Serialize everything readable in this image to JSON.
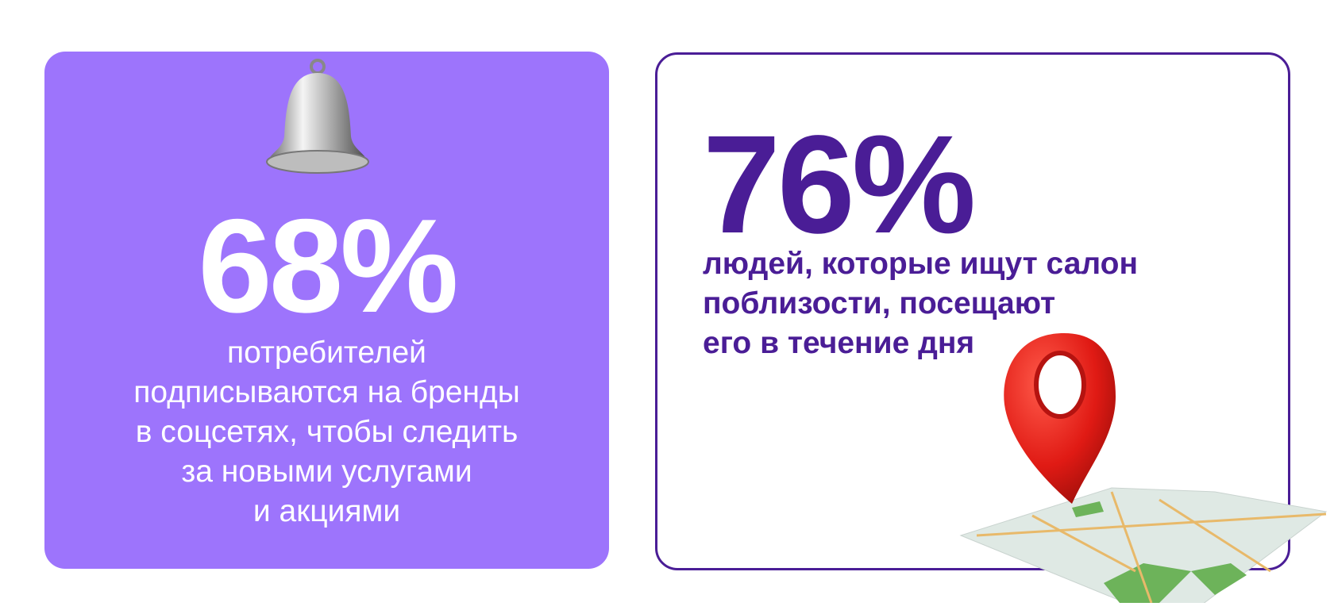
{
  "colors": {
    "left_card": "#9d74fc",
    "accent": "#4a1d96",
    "pin": "#e02020"
  },
  "left": {
    "icon": "bell-icon",
    "stat": "68%",
    "lines": [
      "потребителей",
      "подписываются на бренды",
      "в соцсетях, чтобы следить",
      "за новыми услугами",
      "и акциями"
    ]
  },
  "right": {
    "icon": "map-pin-icon",
    "stat": "76%",
    "lines": [
      "людей, которые ищут салон",
      "поблизости, посещают",
      "его в течение дня"
    ]
  }
}
